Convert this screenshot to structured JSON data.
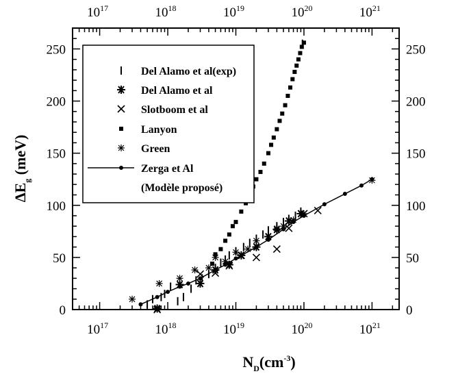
{
  "chart_data": {
    "type": "scatter",
    "title": "",
    "xlabel": "N_D(cm^-3)",
    "xlabel_parts": {
      "main": "N",
      "sub": "D",
      "unit_open": "(cm",
      "unit_sup": "-3",
      "unit_close": ")"
    },
    "ylabel": "ΔE_g (meV)",
    "ylabel_parts": {
      "main": "ΔE",
      "sub": "g",
      "unit": " (meV)"
    },
    "xscale": "log",
    "xlim": [
      4e+16,
      2.5e+21
    ],
    "ylim": [
      0,
      270
    ],
    "x_ticks": [
      {
        "base": "10",
        "exp": "17",
        "value": 1e+17
      },
      {
        "base": "10",
        "exp": "18",
        "value": 1e+18
      },
      {
        "base": "10",
        "exp": "19",
        "value": 1e+19
      },
      {
        "base": "10",
        "exp": "20",
        "value": 1e+20
      },
      {
        "base": "10",
        "exp": "21",
        "value": 1e+21
      }
    ],
    "y_ticks": [
      "0",
      "50",
      "100",
      "150",
      "200",
      "250"
    ],
    "grid": false,
    "legend_position": "top-left",
    "series": [
      {
        "name": "Del Alamo et al(exp)",
        "marker": "vbar",
        "points": [
          [
            5e+17,
            5
          ],
          [
            6e+17,
            10
          ],
          [
            8e+17,
            12
          ],
          [
            9e+17,
            15
          ],
          [
            1.1e+18,
            22
          ],
          [
            1.4e+18,
            8
          ],
          [
            1.7e+18,
            12
          ],
          [
            2.2e+18,
            20
          ],
          [
            2.6e+18,
            28
          ],
          [
            3.2e+18,
            30
          ],
          [
            4e+18,
            34
          ],
          [
            5e+18,
            40
          ],
          [
            6e+18,
            45
          ],
          [
            7e+18,
            48
          ],
          [
            8e+18,
            52
          ],
          [
            1e+19,
            56
          ],
          [
            1.3e+19,
            60
          ],
          [
            1.6e+19,
            64
          ],
          [
            2e+19,
            68
          ],
          [
            2.5e+19,
            72
          ],
          [
            3e+19,
            76
          ],
          [
            4e+19,
            80
          ],
          [
            5e+19,
            84
          ],
          [
            6e+19,
            87
          ],
          [
            7.5e+19,
            90
          ],
          [
            9e+19,
            94
          ],
          [
            9.5e+19,
            255
          ]
        ]
      },
      {
        "name": "Del Alamo et al",
        "marker": "asterisk",
        "points": [
          [
            7e+17,
            1
          ],
          [
            1.5e+18,
            24
          ],
          [
            3e+18,
            25
          ],
          [
            5e+18,
            38
          ],
          [
            8e+18,
            43
          ],
          [
            1.2e+19,
            52
          ],
          [
            2e+19,
            60
          ],
          [
            3e+19,
            70
          ],
          [
            4e+19,
            77
          ],
          [
            6e+19,
            85
          ],
          [
            9e+19,
            92
          ]
        ]
      },
      {
        "name": "Slotboom et al",
        "marker": "x",
        "points": [
          [
            7e+17,
            0
          ],
          [
            3e+18,
            34
          ],
          [
            5e+18,
            35
          ],
          [
            8e+18,
            42
          ],
          [
            1.2e+19,
            52
          ],
          [
            2e+19,
            50
          ],
          [
            4e+19,
            58
          ],
          [
            6e+19,
            78
          ],
          [
            1e+20,
            92
          ],
          [
            1.6e+20,
            95
          ]
        ]
      },
      {
        "name": "Lanyon",
        "marker": "square",
        "points": [
          [
            4.5e+18,
            44
          ],
          [
            5e+18,
            53
          ],
          [
            6e+18,
            58
          ],
          [
            7e+18,
            66
          ],
          [
            8e+18,
            72
          ],
          [
            9e+18,
            80
          ],
          [
            1e+19,
            84
          ],
          [
            1.2e+19,
            94
          ],
          [
            1.4e+19,
            102
          ],
          [
            1.6e+19,
            110
          ],
          [
            1.8e+19,
            118
          ],
          [
            2e+19,
            125
          ],
          [
            2.3e+19,
            132
          ],
          [
            2.6e+19,
            140
          ],
          [
            3e+19,
            150
          ],
          [
            3.3e+19,
            158
          ],
          [
            3.6e+19,
            165
          ],
          [
            4e+19,
            173
          ],
          [
            4.4e+19,
            181
          ],
          [
            4.8e+19,
            188
          ],
          [
            5.3e+19,
            196
          ],
          [
            5.8e+19,
            205
          ],
          [
            6.3e+19,
            213
          ],
          [
            6.8e+19,
            221
          ],
          [
            7.3e+19,
            228
          ],
          [
            7.8e+19,
            234
          ],
          [
            8.3e+19,
            240
          ],
          [
            8.8e+19,
            246
          ],
          [
            9.3e+19,
            252
          ],
          [
            1e+20,
            256
          ]
        ]
      },
      {
        "name": "Green",
        "marker": "star",
        "points": [
          [
            3e+17,
            10
          ],
          [
            7.5e+17,
            25
          ],
          [
            1.5e+18,
            30
          ],
          [
            2.5e+18,
            38
          ],
          [
            4e+18,
            40
          ],
          [
            5e+18,
            50
          ],
          [
            7e+18,
            46
          ],
          [
            1e+19,
            55
          ],
          [
            1.5e+19,
            58
          ],
          [
            2e+19,
            66
          ],
          [
            3e+19,
            70
          ],
          [
            4e+19,
            76
          ],
          [
            5e+19,
            80
          ],
          [
            7e+19,
            86
          ],
          [
            1e+20,
            92
          ],
          [
            1e+21,
            124
          ]
        ]
      },
      {
        "name": "Zerga et Al",
        "marker": "dot-line",
        "points": [
          [
            4e+17,
            5
          ],
          [
            7e+17,
            12
          ],
          [
            1e+18,
            17
          ],
          [
            1.5e+18,
            22
          ],
          [
            2e+18,
            25
          ],
          [
            3e+18,
            30
          ],
          [
            5e+18,
            38
          ],
          [
            7e+18,
            43
          ],
          [
            1e+19,
            49
          ],
          [
            2e+19,
            60
          ],
          [
            3e+19,
            67
          ],
          [
            5e+19,
            77
          ],
          [
            7e+19,
            84
          ],
          [
            1e+20,
            90
          ],
          [
            2e+20,
            101
          ],
          [
            4e+20,
            111
          ],
          [
            7e+20,
            119
          ],
          [
            1e+21,
            125
          ]
        ]
      }
    ],
    "legend_note": "(Modèle proposé)"
  }
}
